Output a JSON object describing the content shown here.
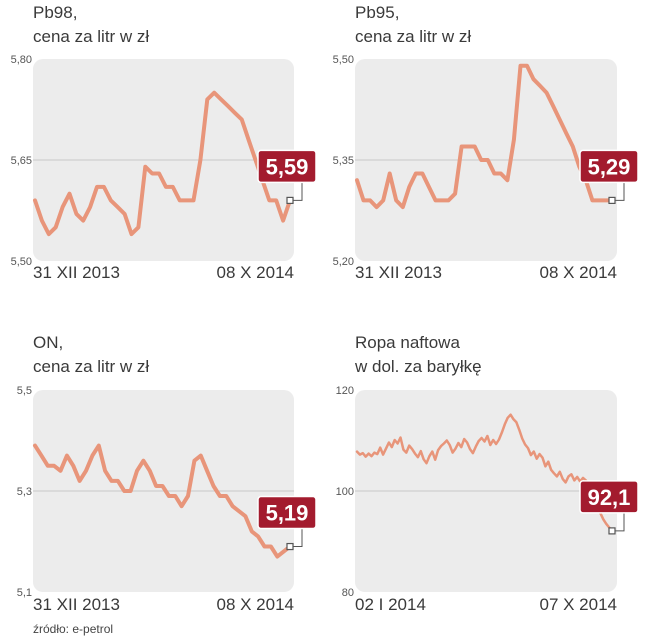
{
  "source": "źródło: e-petrol",
  "colors": {
    "line": "#e8957a",
    "panel": "#ececec",
    "badge": "#a31b2e",
    "badge_text": "#ffffff",
    "ref_line": "#ffffff"
  },
  "chart_data": [
    {
      "type": "line",
      "title": "Pb98,",
      "subtitle": "cena za litr w zł",
      "ylim": [
        5.5,
        5.8
      ],
      "yticks": [
        "5,80",
        "5,65",
        "5,50"
      ],
      "x_start_label": "31 XII 2013",
      "x_end_label": "08 X 2014",
      "last_value_label": "5,59",
      "reference_value": 5.65,
      "values": [
        5.59,
        5.56,
        5.54,
        5.55,
        5.58,
        5.6,
        5.57,
        5.56,
        5.58,
        5.61,
        5.61,
        5.59,
        5.58,
        5.57,
        5.54,
        5.55,
        5.64,
        5.63,
        5.63,
        5.61,
        5.61,
        5.59,
        5.59,
        5.59,
        5.65,
        5.74,
        5.75,
        5.74,
        5.73,
        5.72,
        5.71,
        5.68,
        5.65,
        5.62,
        5.59,
        5.59,
        5.56,
        5.59
      ]
    },
    {
      "type": "line",
      "title": "Pb95,",
      "subtitle": "cena za litr w zł",
      "ylim": [
        5.2,
        5.5
      ],
      "yticks": [
        "5,50",
        "5,35",
        "5,20"
      ],
      "x_start_label": "31 XII 2013",
      "x_end_label": "08 X 2014",
      "last_value_label": "5,29",
      "reference_value": 5.35,
      "values": [
        5.32,
        5.29,
        5.29,
        5.28,
        5.29,
        5.33,
        5.29,
        5.28,
        5.31,
        5.33,
        5.33,
        5.31,
        5.29,
        5.29,
        5.29,
        5.3,
        5.37,
        5.37,
        5.37,
        5.35,
        5.35,
        5.33,
        5.33,
        5.32,
        5.38,
        5.49,
        5.49,
        5.47,
        5.46,
        5.45,
        5.43,
        5.41,
        5.39,
        5.37,
        5.34,
        5.32,
        5.29,
        5.29,
        5.29,
        5.29
      ]
    },
    {
      "type": "line",
      "title": "ON,",
      "subtitle": "cena za litr w zł",
      "ylim": [
        5.1,
        5.5
      ],
      "yticks": [
        "5,5",
        "5,3",
        "5,1"
      ],
      "x_start_label": "31 XII 2013",
      "x_end_label": "08 X 2014",
      "last_value_label": "5,19",
      "reference_value": 5.3,
      "values": [
        5.39,
        5.37,
        5.35,
        5.35,
        5.34,
        5.37,
        5.35,
        5.32,
        5.34,
        5.37,
        5.39,
        5.34,
        5.32,
        5.32,
        5.3,
        5.3,
        5.34,
        5.36,
        5.34,
        5.31,
        5.31,
        5.29,
        5.29,
        5.27,
        5.29,
        5.36,
        5.37,
        5.34,
        5.31,
        5.29,
        5.29,
        5.27,
        5.26,
        5.25,
        5.22,
        5.21,
        5.19,
        5.19,
        5.17,
        5.18,
        5.19
      ]
    },
    {
      "type": "line",
      "title": "Ropa naftowa",
      "subtitle": "w dol. za baryłkę",
      "ylim": [
        80,
        120
      ],
      "yticks": [
        "120",
        "100",
        "80"
      ],
      "x_start_label": "02 I 2014",
      "x_end_label": "07 X 2014",
      "last_value_label": "92,1",
      "reference_value": 100,
      "values": [
        107.8,
        107.2,
        107.5,
        106.8,
        107.4,
        106.9,
        107.6,
        107.3,
        108.6,
        107.2,
        108.4,
        109.6,
        108.7,
        110.1,
        109.4,
        110.6,
        108.2,
        107.6,
        109.0,
        108.3,
        107.4,
        106.7,
        107.9,
        106.3,
        105.5,
        106.9,
        107.8,
        106.2,
        108.1,
        108.9,
        109.4,
        110.0,
        109.1,
        107.6,
        108.4,
        109.5,
        108.7,
        110.3,
        109.6,
        108.3,
        107.5,
        108.8,
        109.9,
        110.5,
        109.8,
        110.9,
        109.1,
        110.1,
        109.3,
        110.2,
        111.6,
        113.2,
        114.5,
        115.1,
        114.2,
        113.6,
        112.1,
        110.4,
        109.2,
        108.5,
        107.1,
        107.8,
        106.4,
        107.3,
        106.6,
        104.9,
        105.8,
        104.2,
        103.5,
        102.9,
        103.8,
        102.4,
        101.7,
        102.9,
        103.3,
        102.1,
        102.8,
        101.9,
        102.6,
        102.1,
        100.8,
        99.6,
        98.9,
        97.4,
        95.6,
        94.4,
        93.5,
        92.8,
        92.1
      ]
    }
  ]
}
